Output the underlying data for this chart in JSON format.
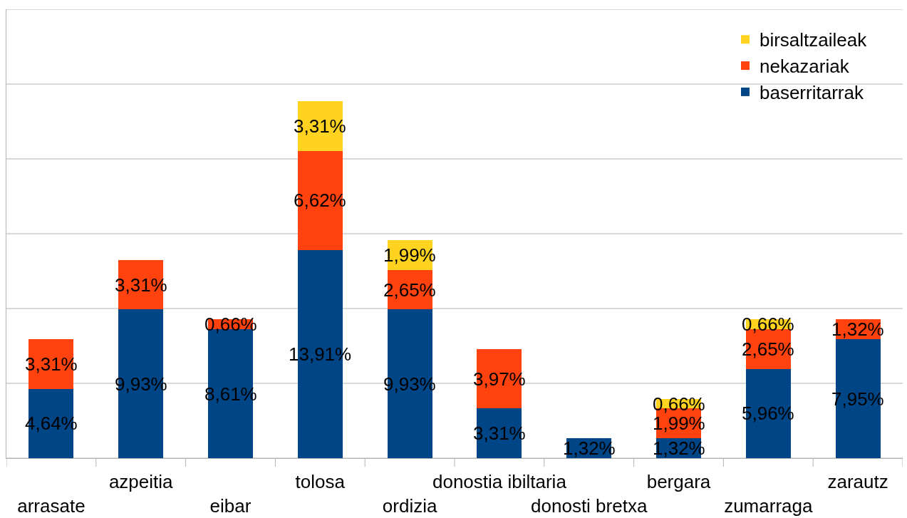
{
  "chart_data": {
    "type": "bar",
    "stacked": true,
    "categories": [
      "arrasate",
      "azpeitia",
      "eibar",
      "tolosa",
      "ordizia",
      "donostia ibiltaria",
      "donosti bretxa",
      "bergara",
      "zumarraga",
      "zarautz"
    ],
    "series": [
      {
        "name": "baserritarrak",
        "color": "#004586",
        "values": [
          4.64,
          9.93,
          8.61,
          13.91,
          9.93,
          3.31,
          1.32,
          1.32,
          5.96,
          7.95
        ],
        "value_labels": [
          "4,64%",
          "9,93%",
          "8,61%",
          "13,91%",
          "9,93%",
          "3,31%",
          "1,32%",
          "1,32%",
          "5,96%",
          "7,95%"
        ]
      },
      {
        "name": "nekazariak",
        "color": "#ff420e",
        "values": [
          3.31,
          3.31,
          0.66,
          6.62,
          2.65,
          3.97,
          null,
          1.99,
          2.65,
          1.32
        ],
        "value_labels": [
          "3,31%",
          "3,31%",
          "0,66%",
          "6,62%",
          "2,65%",
          "3,97%",
          null,
          "1,99%",
          "2,65%",
          "1,32%"
        ]
      },
      {
        "name": "birsaltzaileak",
        "color": "#ffd320",
        "values": [
          null,
          null,
          null,
          3.31,
          1.99,
          null,
          null,
          0.66,
          0.66,
          null
        ],
        "value_labels": [
          null,
          null,
          null,
          "3,31%",
          "1,99%",
          null,
          null,
          "0,66%",
          "0,66%",
          null
        ]
      }
    ],
    "ylim": [
      0,
      30
    ],
    "yticks": [
      {
        "value": 0,
        "label": null
      },
      {
        "value": 5,
        "label": null
      },
      {
        "value": 10,
        "label": null
      },
      {
        "value": 15,
        "label": null
      },
      {
        "value": 20,
        "label": null
      },
      {
        "value": 25,
        "label": null
      },
      {
        "value": 30,
        "label": null
      }
    ],
    "grid": "y",
    "legend": "top right",
    "tick_labels": "x"
  }
}
